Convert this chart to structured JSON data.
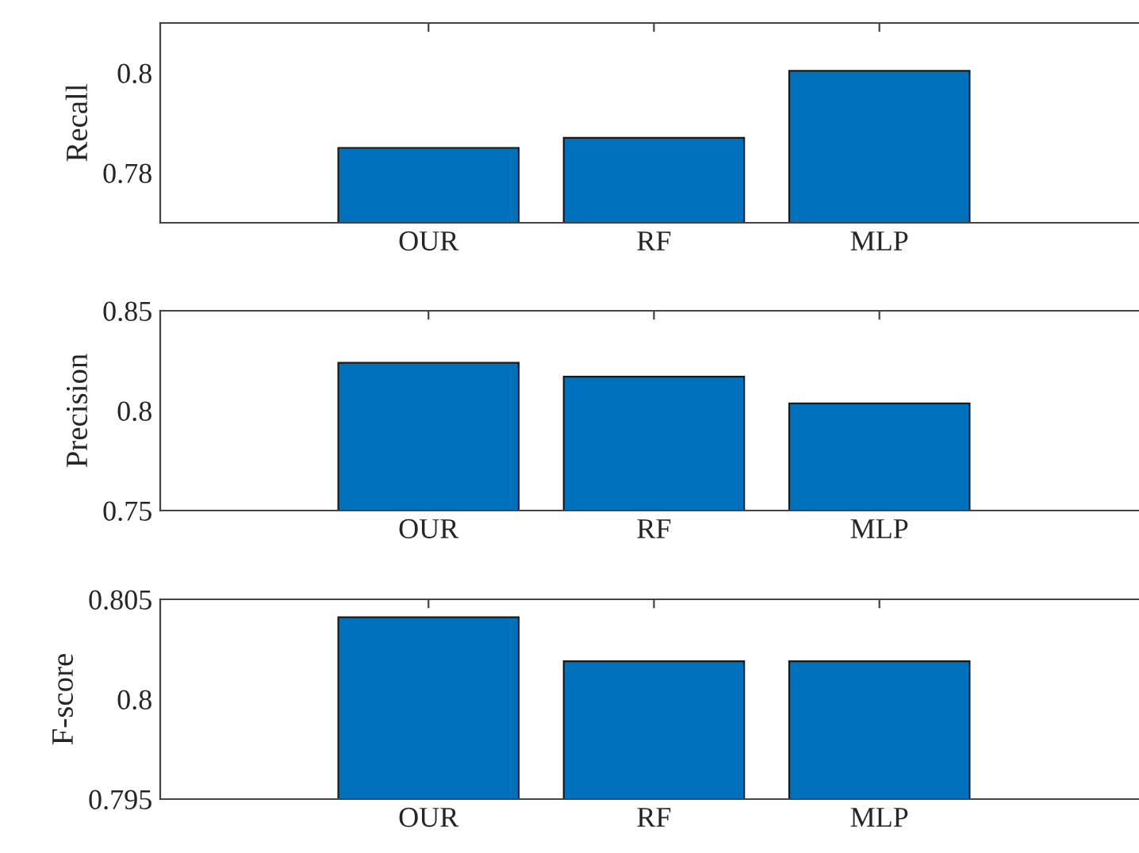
{
  "chart_data": [
    {
      "type": "bar",
      "ylabel": "Recall",
      "categories": [
        "OUR",
        "RF",
        "MLP"
      ],
      "values": [
        0.785,
        0.787,
        0.8004
      ],
      "color": "#0072bd",
      "ylim": [
        0.77,
        0.81
      ],
      "yticks": [
        0.78,
        0.8
      ]
    },
    {
      "type": "bar",
      "ylabel": "Precision",
      "categories": [
        "OUR",
        "RF",
        "MLP"
      ],
      "values": [
        0.824,
        0.817,
        0.8036
      ],
      "color": "#0072bd",
      "ylim": [
        0.75,
        0.85
      ],
      "yticks": [
        0.75,
        0.8,
        0.85
      ]
    },
    {
      "type": "bar",
      "ylabel": "F-score",
      "categories": [
        "OUR",
        "RF",
        "MLP"
      ],
      "values": [
        0.8041,
        0.8019,
        0.8019
      ],
      "color": "#0072bd",
      "ylim": [
        0.795,
        0.805
      ],
      "yticks": [
        0.795,
        0.8,
        0.805
      ]
    }
  ]
}
